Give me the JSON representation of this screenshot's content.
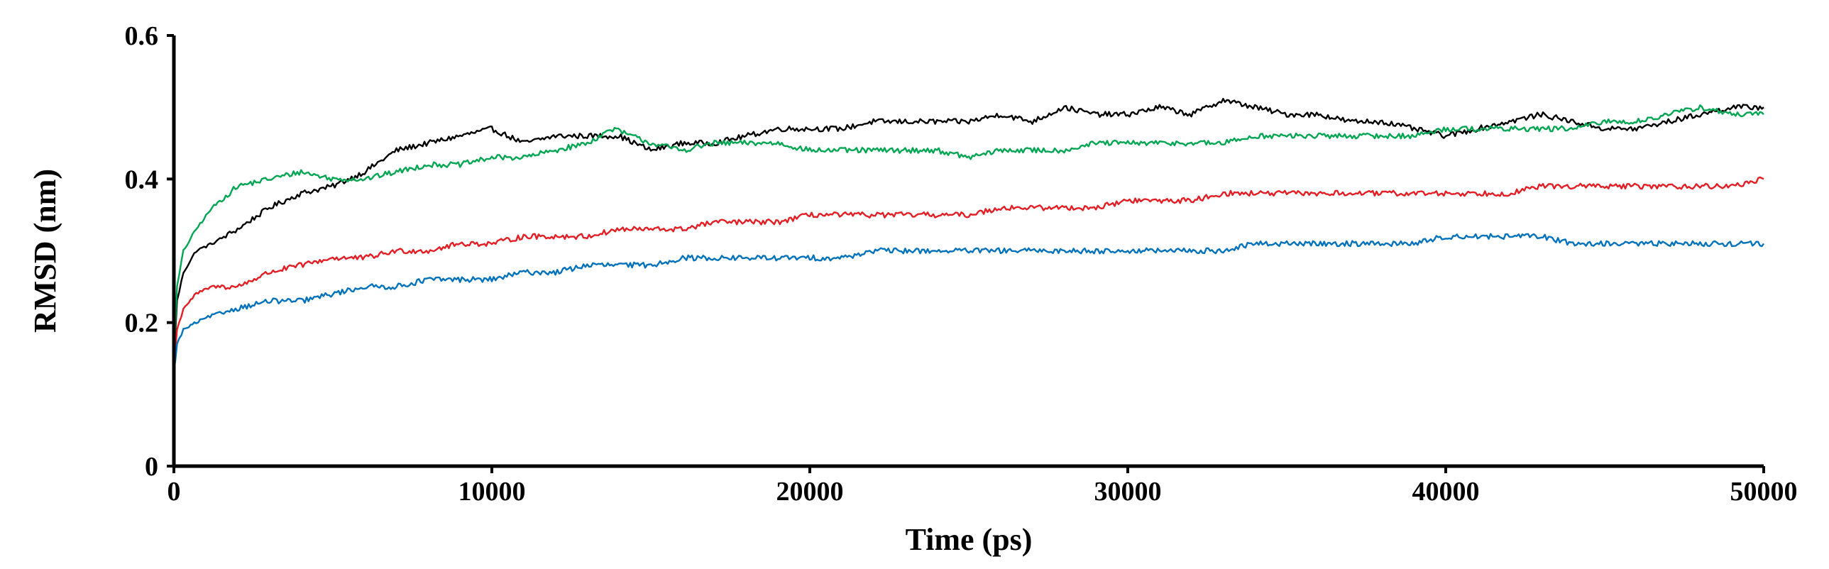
{
  "chart_data": {
    "type": "line",
    "title": "",
    "xlabel": "Time (ps)",
    "ylabel": "RMSD (nm)",
    "xlim": [
      0,
      50000
    ],
    "ylim": [
      0,
      0.6
    ],
    "x_ticks": [
      0,
      10000,
      20000,
      30000,
      40000,
      50000
    ],
    "x_tick_labels": [
      "0",
      "10000",
      "20000",
      "30000",
      "40000",
      "50000"
    ],
    "y_ticks": [
      0,
      0.2,
      0.4,
      0.6
    ],
    "y_tick_labels": [
      "0",
      "0.2",
      "0.4",
      "0.6"
    ],
    "grid": false,
    "legend": "none",
    "series": [
      {
        "color": "#000000",
        "x": [
          0,
          100,
          300,
          700,
          1200,
          2000,
          3000,
          4000,
          5000,
          6000,
          7000,
          8000,
          9000,
          10000,
          11000,
          12000,
          13000,
          14000,
          15000,
          16000,
          17000,
          18000,
          19000,
          20000,
          21000,
          22000,
          23000,
          24000,
          25000,
          26000,
          27000,
          28000,
          29000,
          30000,
          31000,
          32000,
          33000,
          34000,
          35000,
          36000,
          37000,
          38000,
          39000,
          40000,
          41000,
          42000,
          43000,
          44000,
          45000,
          46000,
          47000,
          48000,
          49000,
          50000
        ],
        "y": [
          0.15,
          0.23,
          0.27,
          0.3,
          0.31,
          0.33,
          0.36,
          0.38,
          0.39,
          0.41,
          0.44,
          0.45,
          0.46,
          0.47,
          0.45,
          0.46,
          0.46,
          0.46,
          0.44,
          0.45,
          0.45,
          0.46,
          0.47,
          0.47,
          0.47,
          0.48,
          0.48,
          0.48,
          0.48,
          0.49,
          0.48,
          0.5,
          0.49,
          0.49,
          0.5,
          0.49,
          0.51,
          0.5,
          0.49,
          0.49,
          0.48,
          0.48,
          0.47,
          0.46,
          0.47,
          0.48,
          0.49,
          0.48,
          0.47,
          0.47,
          0.48,
          0.49,
          0.5,
          0.5
        ]
      },
      {
        "color": "#00a651",
        "x": [
          0,
          100,
          300,
          700,
          1200,
          2000,
          3000,
          4000,
          5000,
          6000,
          7000,
          8000,
          9000,
          10000,
          11000,
          12000,
          13000,
          13800,
          15000,
          16000,
          17000,
          18000,
          19000,
          20000,
          21000,
          22000,
          23000,
          24000,
          25000,
          26000,
          27000,
          28000,
          29000,
          30000,
          31000,
          32000,
          33000,
          34000,
          35000,
          36000,
          37000,
          38000,
          39000,
          40000,
          41000,
          42000,
          43000,
          44000,
          45000,
          46000,
          47000,
          48000,
          49000,
          50000
        ],
        "y": [
          0.15,
          0.25,
          0.3,
          0.33,
          0.36,
          0.39,
          0.4,
          0.41,
          0.4,
          0.4,
          0.41,
          0.42,
          0.42,
          0.43,
          0.43,
          0.44,
          0.45,
          0.47,
          0.45,
          0.44,
          0.45,
          0.45,
          0.45,
          0.44,
          0.44,
          0.44,
          0.44,
          0.44,
          0.43,
          0.44,
          0.44,
          0.44,
          0.45,
          0.45,
          0.45,
          0.45,
          0.45,
          0.46,
          0.46,
          0.46,
          0.46,
          0.46,
          0.46,
          0.47,
          0.47,
          0.47,
          0.47,
          0.47,
          0.48,
          0.48,
          0.49,
          0.5,
          0.49,
          0.49
        ]
      },
      {
        "color": "#e31e24",
        "x": [
          0,
          100,
          300,
          700,
          1200,
          2000,
          3000,
          4000,
          5000,
          6000,
          7000,
          8000,
          9000,
          10000,
          11000,
          12000,
          13000,
          14000,
          15000,
          16000,
          17000,
          18000,
          19000,
          20000,
          21000,
          22000,
          23000,
          24000,
          25000,
          26000,
          27000,
          28000,
          29000,
          30000,
          31000,
          32000,
          33000,
          34000,
          35000,
          36000,
          37000,
          38000,
          39000,
          40000,
          41000,
          42000,
          43000,
          44000,
          45000,
          46000,
          47000,
          48000,
          49000,
          50000
        ],
        "y": [
          0.14,
          0.19,
          0.22,
          0.24,
          0.25,
          0.25,
          0.27,
          0.28,
          0.29,
          0.29,
          0.3,
          0.3,
          0.31,
          0.31,
          0.32,
          0.32,
          0.32,
          0.33,
          0.33,
          0.33,
          0.34,
          0.34,
          0.34,
          0.35,
          0.35,
          0.35,
          0.35,
          0.35,
          0.35,
          0.36,
          0.36,
          0.36,
          0.36,
          0.37,
          0.37,
          0.37,
          0.38,
          0.38,
          0.38,
          0.38,
          0.38,
          0.38,
          0.38,
          0.38,
          0.38,
          0.38,
          0.39,
          0.39,
          0.39,
          0.39,
          0.39,
          0.39,
          0.39,
          0.4
        ]
      },
      {
        "color": "#0072bc",
        "x": [
          0,
          100,
          300,
          700,
          1200,
          2000,
          3000,
          4000,
          5000,
          6000,
          7000,
          8000,
          9000,
          10000,
          11000,
          12000,
          13000,
          14000,
          15000,
          16000,
          17000,
          18000,
          19000,
          20000,
          21000,
          22000,
          23000,
          24000,
          25000,
          26000,
          27000,
          28000,
          29000,
          30000,
          31000,
          32000,
          33000,
          34000,
          35000,
          36000,
          37000,
          38000,
          39000,
          40000,
          41000,
          42000,
          43000,
          44000,
          45000,
          46000,
          47000,
          48000,
          49000,
          50000
        ],
        "y": [
          0.13,
          0.17,
          0.19,
          0.2,
          0.21,
          0.22,
          0.23,
          0.23,
          0.24,
          0.25,
          0.25,
          0.26,
          0.26,
          0.26,
          0.27,
          0.27,
          0.28,
          0.28,
          0.28,
          0.29,
          0.29,
          0.29,
          0.29,
          0.29,
          0.29,
          0.3,
          0.3,
          0.3,
          0.3,
          0.3,
          0.3,
          0.3,
          0.3,
          0.3,
          0.3,
          0.3,
          0.3,
          0.31,
          0.31,
          0.31,
          0.31,
          0.31,
          0.31,
          0.32,
          0.32,
          0.32,
          0.32,
          0.31,
          0.31,
          0.31,
          0.31,
          0.31,
          0.31,
          0.31
        ]
      }
    ]
  }
}
